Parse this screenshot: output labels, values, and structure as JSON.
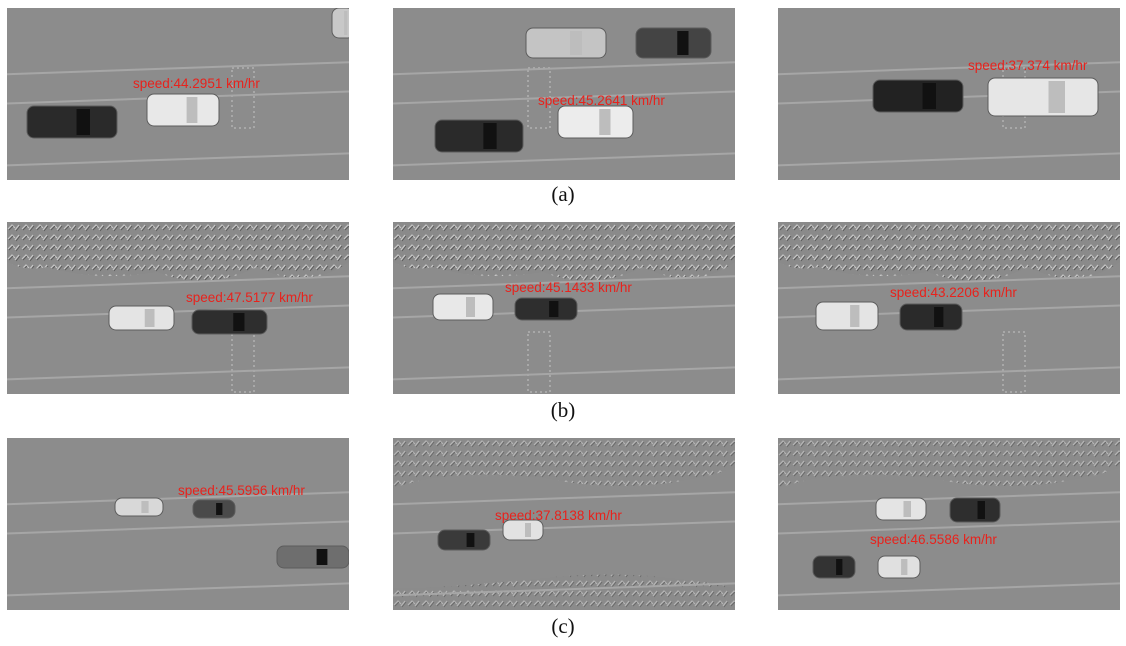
{
  "rows": [
    {
      "caption": "(a)",
      "panels": [
        {
          "label": "speed:44.2951 km/hr"
        },
        {
          "label": "speed:45.2641 km/hr"
        },
        {
          "label": "speed:37.374 km/hr"
        }
      ]
    },
    {
      "caption": "(b)",
      "panels": [
        {
          "label": "speed:47.5177 km/hr"
        },
        {
          "label": "speed:45.1433 km/hr"
        },
        {
          "label": "speed:43.2206 km/hr"
        }
      ]
    },
    {
      "caption": "(c)",
      "panels": [
        {
          "label": "speed:45.5956 km/hr"
        },
        {
          "label": "speed:37.8138 km/hr"
        },
        {
          "label": "speed:46.5586 km/hr"
        }
      ]
    }
  ]
}
